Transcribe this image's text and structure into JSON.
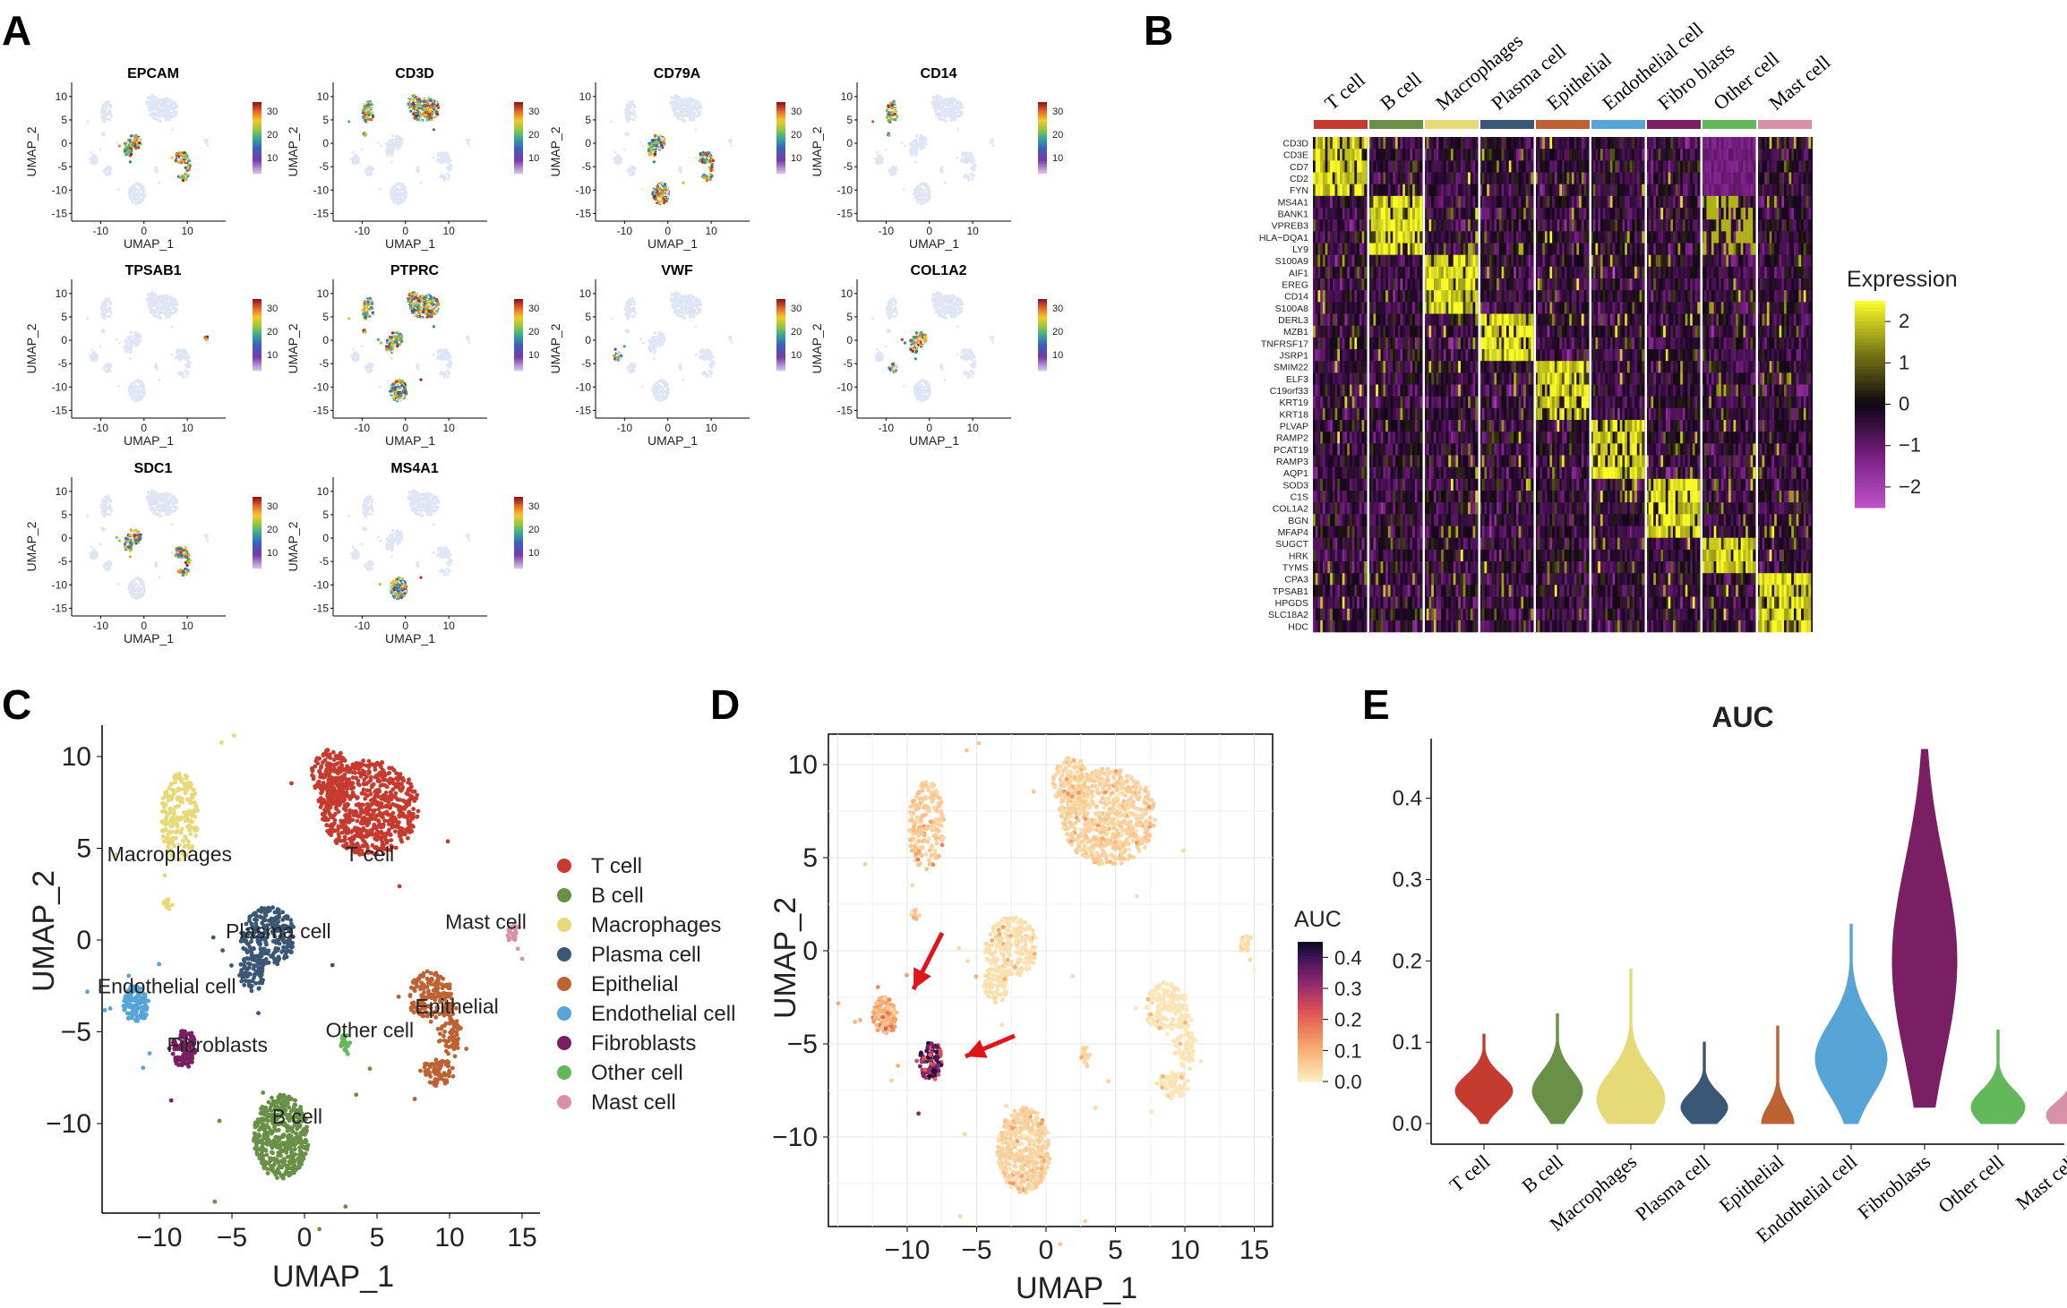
{
  "panel_labels": [
    "A",
    "B",
    "C",
    "D",
    "E"
  ],
  "colors": {
    "T cell": "#c63b2f",
    "B cell": "#6a9048",
    "Macrophages": "#e6d977",
    "Plasma cell": "#3a5875",
    "Epithelial": "#bd6233",
    "Endothelial cell": "#56a5d6",
    "Fibroblasts": "#7b1f64",
    "Other cell": "#62b85b",
    "Mast cell": "#d792a8",
    "background": "#dfe5f4"
  },
  "chart_data": [
    {
      "panel": "A",
      "type": "scatter",
      "description_kind": "feature_plots",
      "genes": [
        "EPCAM",
        "CD3D",
        "CD79A",
        "CD14",
        "TPSAB1",
        "PTPRC",
        "VWF",
        "COL1A2",
        "SDC1",
        "MS4A1"
      ],
      "highlighted_clusters": {
        "EPCAM": [
          "Epithelial",
          "Plasma cell"
        ],
        "CD3D": [
          "T cell",
          "Macrophages"
        ],
        "CD79A": [
          "B cell",
          "Plasma cell",
          "Epithelial"
        ],
        "CD14": [
          "Macrophages"
        ],
        "TPSAB1": [
          "Mast cell"
        ],
        "PTPRC": [
          "T cell",
          "B cell",
          "Macrophages",
          "Plasma cell"
        ],
        "VWF": [
          "Endothelial cell"
        ],
        "COL1A2": [
          "Fibroblasts",
          "Plasma cell"
        ],
        "SDC1": [
          "Plasma cell",
          "Epithelial"
        ],
        "MS4A1": [
          "B cell"
        ]
      },
      "xlabel": "UMAP_1",
      "ylabel": "UMAP_2",
      "xticks": [
        "-10",
        "0",
        "10"
      ],
      "yticks": [
        "10",
        "5",
        "0",
        "-5",
        "-10",
        "-15"
      ],
      "colorbar_ticks": [
        "30",
        "20",
        "10"
      ]
    },
    {
      "panel": "B",
      "type": "heatmap",
      "groups": [
        "T cell",
        "B cell",
        "Macrophages",
        "Plasma cell",
        "Epithelial",
        "Endothelial cell",
        "Fibro blasts",
        "Other cell",
        "Mast cell"
      ],
      "genes": [
        "CD3D",
        "CD3E",
        "CD7",
        "CD2",
        "FYN",
        "MS4A1",
        "BANK1",
        "VPREB3",
        "HLA−DQA1",
        "LY9",
        "S100A9",
        "AIF1",
        "EREG",
        "CD14",
        "S100A8",
        "DERL3",
        "MZB1",
        "TNFRSF17",
        "JSRP1",
        "SMIM22",
        "ELF3",
        "C19orf33",
        "KRT19",
        "KRT18",
        "PLVAP",
        "RAMP2",
        "PCAT19",
        "RAMP3",
        "AQP1",
        "SOD3",
        "C1S",
        "COL1A2",
        "BGN",
        "MFAP4",
        "SUGCT",
        "HRK",
        "TYMS",
        "CPA3",
        "TPSAB1",
        "HPGDS",
        "SLC18A2",
        "HDC"
      ],
      "legend_title": "Expression",
      "legend_ticks": [
        "2",
        "1",
        "0",
        "−1",
        "−2"
      ],
      "scale_range": [
        -2.5,
        2.5
      ]
    },
    {
      "panel": "C",
      "type": "scatter",
      "xlabel": "UMAP_1",
      "ylabel": "UMAP_2",
      "xticks": [
        "−10",
        "−5",
        "0",
        "5",
        "10",
        "15"
      ],
      "yticks": [
        "10",
        "5",
        "0",
        "−5",
        "−10"
      ],
      "legend": [
        "T cell",
        "B cell",
        "Macrophages",
        "Plasma cell",
        "Epithelial",
        "Endothelial cell",
        "Fibroblasts",
        "Other cell",
        "Mast cell"
      ],
      "cluster_labels": [
        "Macrophages",
        "T cell",
        "Mast cell",
        "Plasma cell",
        "Endothelial cell",
        "Epithelial",
        "Other cell",
        "Fibroblasts",
        "B cell"
      ]
    },
    {
      "panel": "D",
      "type": "scatter",
      "xlabel": "UMAP_1",
      "ylabel": "UMAP_2",
      "xticks": [
        "−10",
        "−5",
        "0",
        "5",
        "10",
        "15"
      ],
      "yticks": [
        "10",
        "5",
        "0",
        "−5",
        "−10"
      ],
      "legend_title": "AUC",
      "legend_ticks": [
        "0.4",
        "0.3",
        "0.2",
        "0.1",
        "0.0"
      ],
      "scale_range": [
        0.0,
        0.45
      ],
      "grid": true,
      "annotations": [
        "arrow → Endothelial cell cluster",
        "arrow → Fibroblasts cluster"
      ],
      "cluster_auc": {
        "T cell": 0.04,
        "B cell": 0.04,
        "Macrophages": 0.05,
        "Plasma cell": 0.02,
        "Epithelial": 0.01,
        "Endothelial cell": 0.1,
        "Fibroblasts": 0.28,
        "Other cell": 0.03,
        "Mast cell": 0.02
      }
    },
    {
      "panel": "E",
      "type": "violin",
      "title": "AUC",
      "categories": [
        "T cell",
        "B cell",
        "Macrophages",
        "Plasma cell",
        "Epithelial",
        "Endothelial cell",
        "Fibroblasts",
        "Other cell",
        "Mast cell"
      ],
      "category_tick_labels": [
        "T cell",
        "B cell",
        "Macrophages",
        "Plasma cell",
        "Epithelial",
        "Endothelial cell",
        "Fibroblasts",
        "Other cell",
        "Mast cell"
      ],
      "min": [
        0.0,
        0.0,
        0.0,
        0.0,
        0.0,
        0.0,
        0.02,
        0.0,
        0.0
      ],
      "max": [
        0.11,
        0.135,
        0.19,
        0.1,
        0.12,
        0.245,
        0.46,
        0.115,
        0.09
      ],
      "median": [
        0.04,
        0.04,
        0.03,
        0.02,
        0.0,
        0.08,
        0.21,
        0.02,
        0.01
      ],
      "ylim": [
        0.0,
        0.47
      ],
      "yticks": [
        "0.0",
        "0.1",
        "0.2",
        "0.3",
        "0.4"
      ]
    }
  ]
}
